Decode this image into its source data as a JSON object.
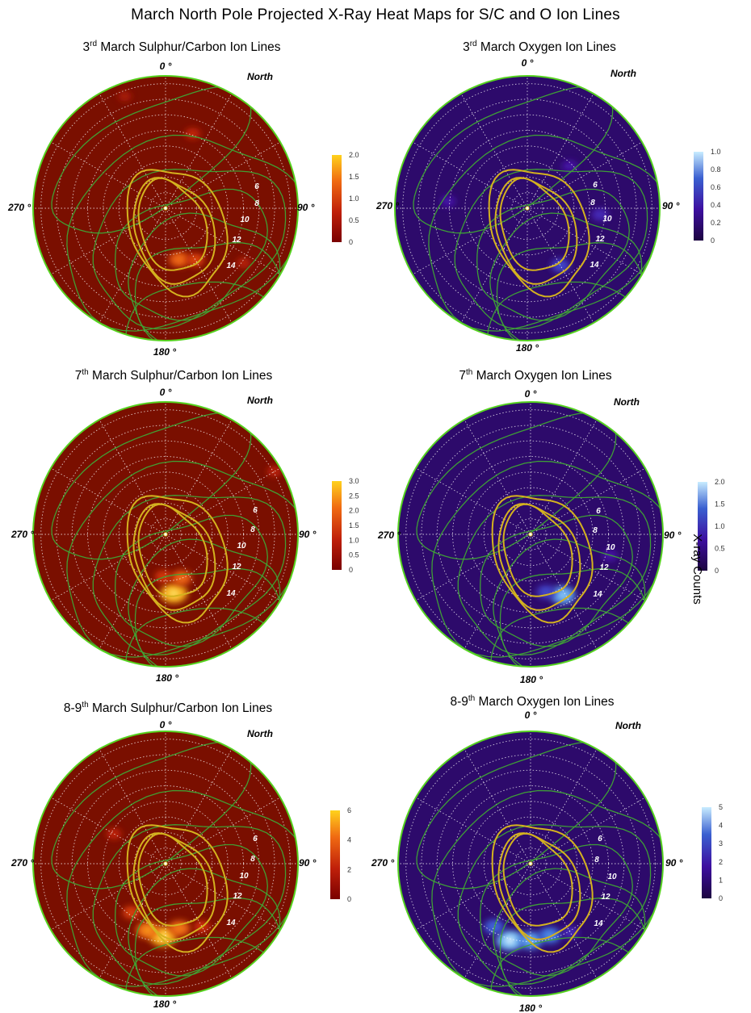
{
  "figure_title": "March North Pole Projected X-Ray Heat Maps for S/C and O Ion Lines",
  "shared_colorbar_label": "X-ray Counts",
  "colors": {
    "sc_background": "#7a0f00",
    "o_background": "#2d0a6b",
    "green_contour": "#3fa535",
    "yellow_contour": "#d4b21f",
    "rim": "#55d21f",
    "grid": "#ffffff"
  },
  "panels": [
    {
      "title": {
        "pre": "3",
        "sup": "rd",
        "post": " March Sulphur/Carbon Ion Lines"
      },
      "axis_labels": {
        "top": "0 °",
        "left": "270 °",
        "right": "90 °",
        "bottom": "180 °",
        "north": "North"
      },
      "contour_labels": [
        "6",
        "8",
        "10",
        "12",
        "14"
      ],
      "colorbar": {
        "ticks": [
          "2.0",
          "1.5",
          "1.0",
          "0.5",
          "0"
        ],
        "colormap": "sulphur-carbon"
      }
    },
    {
      "title": {
        "pre": "3",
        "sup": "rd",
        "post": " March Oxygen Ion Lines"
      },
      "axis_labels": {
        "top": "0 °",
        "left": "270 °",
        "right": "90 °",
        "bottom": "180 °",
        "north": "North"
      },
      "contour_labels": [
        "6",
        "8",
        "10",
        "12",
        "14"
      ],
      "colorbar": {
        "ticks": [
          "1.0",
          "0.8",
          "0.6",
          "0.4",
          "0.2",
          "0"
        ],
        "colormap": "oxygen"
      }
    },
    {
      "title": {
        "pre": "7",
        "sup": "th",
        "post": " March Sulphur/Carbon Ion Lines"
      },
      "axis_labels": {
        "top": "0 °",
        "left": "270 °",
        "right": "90 °",
        "bottom": "180 °",
        "north": "North"
      },
      "contour_labels": [
        "6",
        "8",
        "10",
        "12",
        "14"
      ],
      "colorbar": {
        "ticks": [
          "3.0",
          "2.5",
          "2.0",
          "1.5",
          "1.0",
          "0.5",
          "0"
        ],
        "colormap": "sulphur-carbon"
      }
    },
    {
      "title": {
        "pre": "7",
        "sup": "th",
        "post": " March Oxygen Ion Lines"
      },
      "axis_labels": {
        "top": "0 °",
        "left": "270 °",
        "right": "90 °",
        "bottom": "180 °",
        "north": "North"
      },
      "contour_labels": [
        "6",
        "8",
        "10",
        "12",
        "14"
      ],
      "colorbar": {
        "ticks": [
          "2.0",
          "1.5",
          "1.0",
          "0.5",
          "0"
        ],
        "colormap": "oxygen"
      }
    },
    {
      "title": {
        "pre": "8-9",
        "sup": "th",
        "post": " March Sulphur/Carbon Ion Lines"
      },
      "axis_labels": {
        "top": "0 °",
        "left": "270 °",
        "right": "90 °",
        "bottom": "180 °",
        "north": "North"
      },
      "contour_labels": [
        "6",
        "8",
        "10",
        "12",
        "14"
      ],
      "colorbar": {
        "ticks": [
          "6",
          "4",
          "2",
          "0"
        ],
        "colormap": "sulphur-carbon"
      }
    },
    {
      "title": {
        "pre": "8-9",
        "sup": "th",
        "post": " March Oxygen Ion Lines"
      },
      "axis_labels": {
        "top": "0 °",
        "left": "270 °",
        "right": "90 °",
        "bottom": "180 °",
        "north": "North"
      },
      "contour_labels": [
        "6",
        "8",
        "10",
        "12",
        "14"
      ],
      "colorbar": {
        "ticks": [
          "5",
          "4",
          "3",
          "2",
          "1",
          "0"
        ],
        "colormap": "oxygen"
      }
    }
  ],
  "chart_data": [
    {
      "type": "heatmap",
      "projection": "polar (north pole)",
      "title": "3rd March Sulphur/Carbon Ion Lines",
      "colorbar_range": [
        0,
        2.0
      ],
      "local_time_contours": [
        6,
        8,
        10,
        12,
        14
      ],
      "angular_axis_labels": [
        "0 °",
        "90 °",
        "180 °",
        "270 °"
      ],
      "hotspots": [
        {
          "angle_deg": 165,
          "r": 0.4,
          "value": 1.2
        },
        {
          "angle_deg": 150,
          "r": 0.45,
          "value": 0.9
        },
        {
          "angle_deg": 20,
          "r": 0.6,
          "value": 0.6
        },
        {
          "angle_deg": 340,
          "r": 0.9,
          "value": 0.4
        },
        {
          "angle_deg": 125,
          "r": 0.72,
          "value": 0.5
        }
      ]
    },
    {
      "type": "heatmap",
      "projection": "polar (north pole)",
      "title": "3rd March Oxygen Ion Lines",
      "colorbar_range": [
        0,
        1.0
      ],
      "local_time_contours": [
        6,
        8,
        10,
        12,
        14
      ],
      "angular_axis_labels": [
        "0 °",
        "90 °",
        "180 °",
        "270 °"
      ],
      "hotspots": [
        {
          "angle_deg": 150,
          "r": 0.5,
          "value": 0.5
        },
        {
          "angle_deg": 95,
          "r": 0.55,
          "value": 0.4
        },
        {
          "angle_deg": 275,
          "r": 0.6,
          "value": 0.3
        },
        {
          "angle_deg": 45,
          "r": 0.45,
          "value": 0.3
        }
      ]
    },
    {
      "type": "heatmap",
      "projection": "polar (north pole)",
      "title": "7th March Sulphur/Carbon Ion Lines",
      "colorbar_range": [
        0,
        3.0
      ],
      "local_time_contours": [
        6,
        8,
        10,
        12,
        14
      ],
      "angular_axis_labels": [
        "0 °",
        "90 °",
        "180 °",
        "270 °"
      ],
      "hotspots": [
        {
          "angle_deg": 172,
          "r": 0.45,
          "value": 2.8
        },
        {
          "angle_deg": 160,
          "r": 0.35,
          "value": 1.8
        },
        {
          "angle_deg": 183,
          "r": 0.32,
          "value": 1.2
        },
        {
          "angle_deg": 60,
          "r": 0.95,
          "value": 0.8
        }
      ]
    },
    {
      "type": "heatmap",
      "projection": "polar (north pole)",
      "title": "7th March Oxygen Ion Lines",
      "colorbar_range": [
        0,
        2.0
      ],
      "local_time_contours": [
        6,
        8,
        10,
        12,
        14
      ],
      "angular_axis_labels": [
        "0 °",
        "90 °",
        "180 °",
        "270 °"
      ],
      "hotspots": [
        {
          "angle_deg": 152,
          "r": 0.52,
          "value": 1.7
        },
        {
          "angle_deg": 165,
          "r": 0.45,
          "value": 1.0
        },
        {
          "angle_deg": 105,
          "r": 0.62,
          "value": 0.6
        }
      ]
    },
    {
      "type": "heatmap",
      "projection": "polar (north pole)",
      "title": "8-9th March Sulphur/Carbon Ion Lines",
      "colorbar_range": [
        0,
        7
      ],
      "local_time_contours": [
        6,
        8,
        10,
        12,
        14
      ],
      "angular_axis_labels": [
        "0 °",
        "90 °",
        "180 °",
        "270 °"
      ],
      "hotspots": [
        {
          "angle_deg": 182,
          "r": 0.55,
          "value": 6.5
        },
        {
          "angle_deg": 195,
          "r": 0.52,
          "value": 5.0
        },
        {
          "angle_deg": 168,
          "r": 0.5,
          "value": 4.5
        },
        {
          "angle_deg": 215,
          "r": 0.45,
          "value": 3.0
        },
        {
          "angle_deg": 300,
          "r": 0.45,
          "value": 2.0
        },
        {
          "angle_deg": 150,
          "r": 0.55,
          "value": 2.5
        }
      ]
    },
    {
      "type": "heatmap",
      "projection": "polar (north pole)",
      "title": "8-9th March Oxygen Ion Lines",
      "colorbar_range": [
        0,
        5
      ],
      "local_time_contours": [
        6,
        8,
        10,
        12,
        14
      ],
      "angular_axis_labels": [
        "0 °",
        "90 °",
        "180 °",
        "270 °"
      ],
      "hotspots": [
        {
          "angle_deg": 195,
          "r": 0.6,
          "value": 4.8
        },
        {
          "angle_deg": 180,
          "r": 0.58,
          "value": 4.0
        },
        {
          "angle_deg": 165,
          "r": 0.56,
          "value": 3.5
        },
        {
          "angle_deg": 210,
          "r": 0.55,
          "value": 3.0
        },
        {
          "angle_deg": 150,
          "r": 0.6,
          "value": 2.0
        }
      ]
    }
  ]
}
